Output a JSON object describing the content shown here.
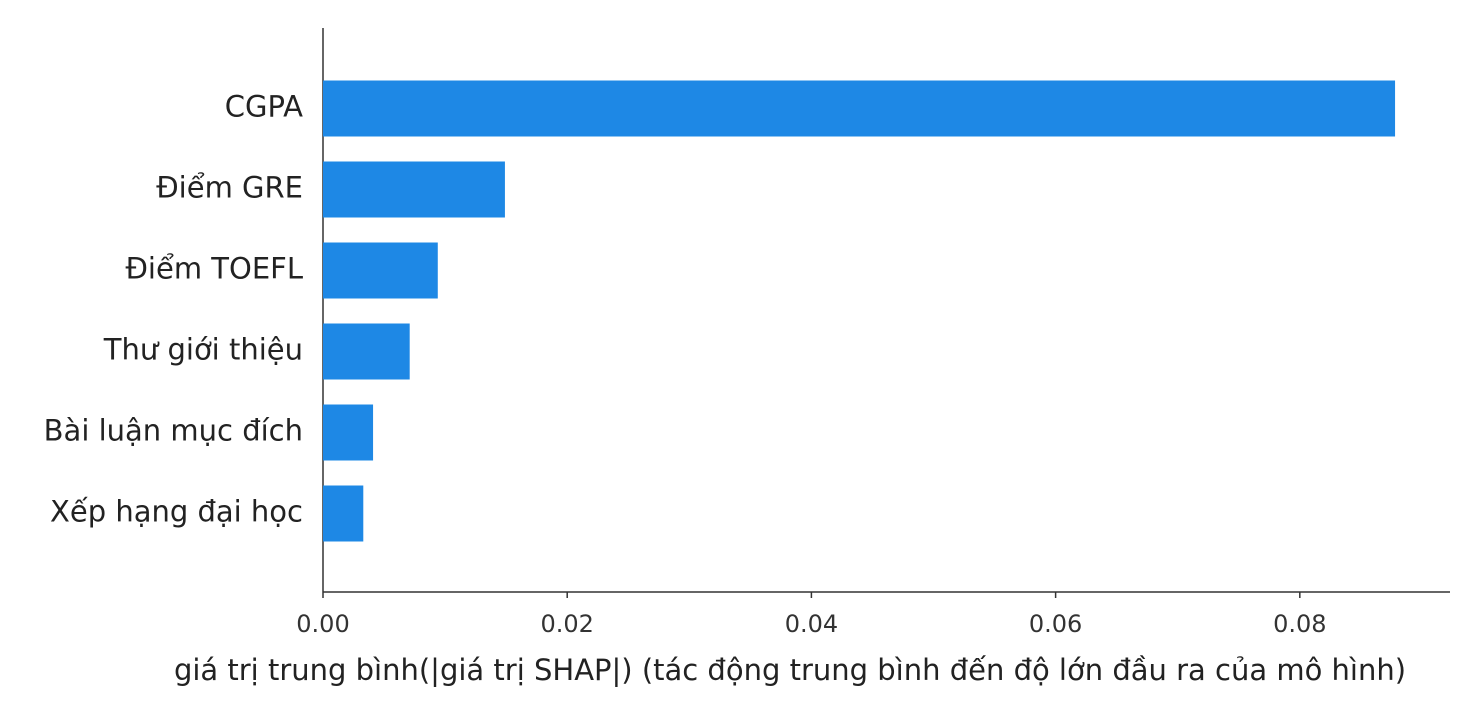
{
  "chart_data": {
    "type": "barh",
    "xlabel": "giá trị trung bình(|giá trị SHAP|) (tác động trung bình đến độ lớn đầu ra của mô hình)",
    "categories": [
      "CGPA",
      "Điểm GRE",
      "Điểm TOEFL",
      "Thư giới thiệu",
      "Bài luận mục đích",
      "Xếp hạng đại học"
    ],
    "values": [
      0.0878,
      0.0149,
      0.0094,
      0.0071,
      0.0041,
      0.0033
    ],
    "color": "#1e88e5",
    "xlim": [
      0,
      0.0923
    ],
    "xticks": [
      {
        "value": 0,
        "label": "0.00"
      },
      {
        "value": 0.02,
        "label": "0.02"
      },
      {
        "value": 0.04,
        "label": "0.04"
      },
      {
        "value": 0.06,
        "label": "0.06"
      },
      {
        "value": 0.08,
        "label": "0.08"
      }
    ]
  }
}
